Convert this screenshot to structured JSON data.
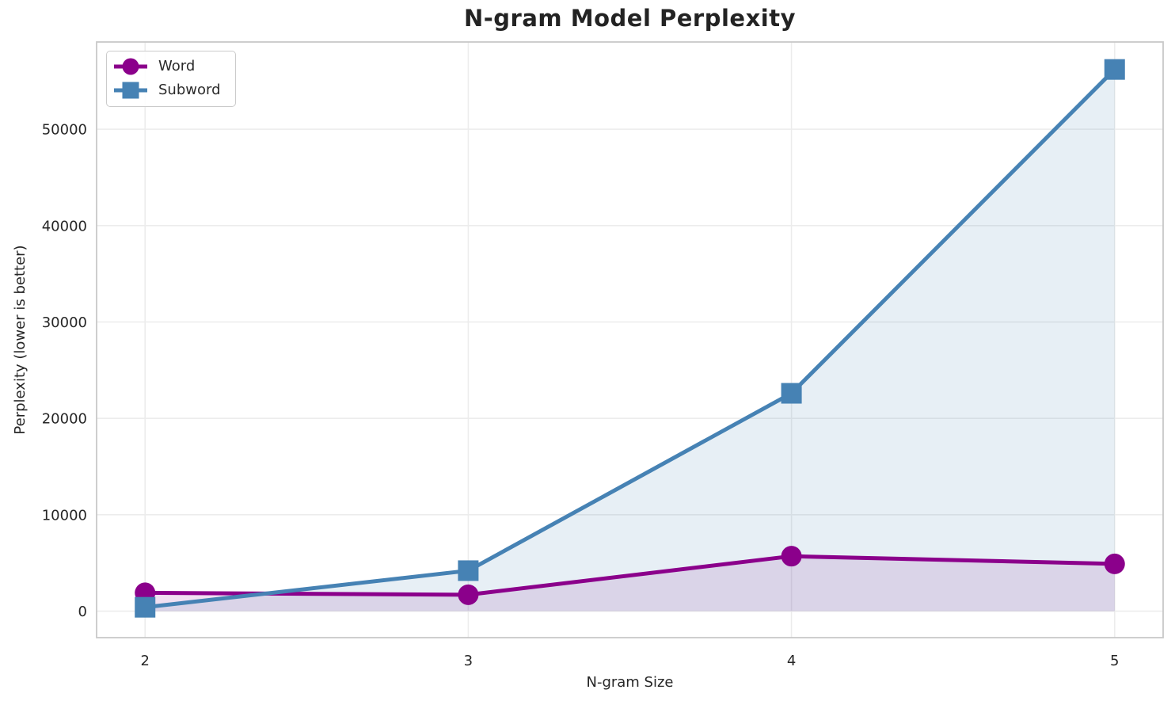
{
  "chart_data": {
    "type": "line",
    "title": "N-gram Model Perplexity",
    "xlabel": "N-gram Size",
    "ylabel": "Perplexity (lower is better)",
    "x": [
      2,
      3,
      4,
      5
    ],
    "series": [
      {
        "name": "Word",
        "marker": "circle",
        "color": "#8B008B",
        "fill_color": "rgba(139,0,139,0.12)",
        "values": [
          1900,
          1700,
          5700,
          4900
        ]
      },
      {
        "name": "Subword",
        "marker": "square",
        "color": "#4682B4",
        "fill_color": "rgba(70,130,180,0.13)",
        "values": [
          400,
          4200,
          22600,
          56200
        ]
      }
    ],
    "x_ticks": [
      "2",
      "3",
      "4",
      "5"
    ],
    "y_ticks": [
      0,
      10000,
      20000,
      30000,
      40000,
      50000
    ],
    "xlim": [
      1.85,
      5.15
    ],
    "ylim": [
      -2750,
      59050
    ],
    "grid": true,
    "area_fill": true,
    "area_baseline": 0,
    "legend_position": "upper-left"
  },
  "colors": {
    "background": "#FFFFFF",
    "grid": "#ECECEC",
    "spine": "#C9C9C9",
    "tick_text": "#262626",
    "title_text": "#232323"
  }
}
